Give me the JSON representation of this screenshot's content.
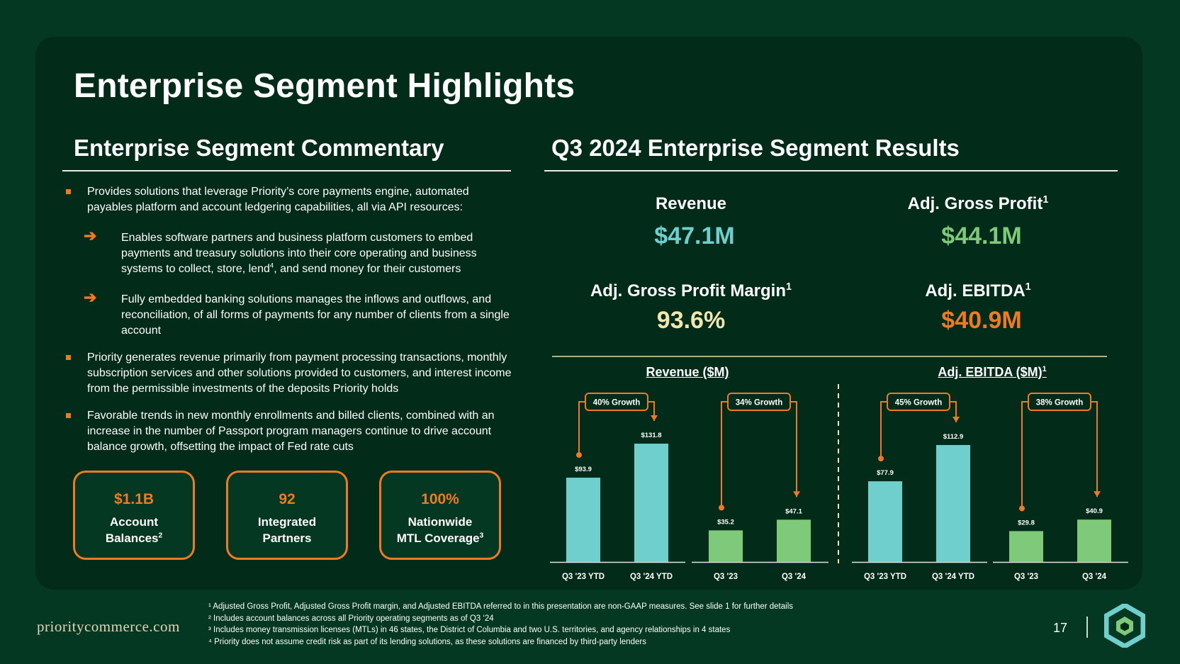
{
  "page": {
    "title": "Enterprise Segment Highlights",
    "page_number": "17",
    "footer_url": "prioritycommerce.com"
  },
  "commentary": {
    "title": "Enterprise Segment Commentary",
    "bullet1": "Provides solutions that leverage Priority’s core payments engine, automated payables platform and account ledgering capabilities, all via API resources:",
    "sub1_part1": "Enables software partners and business platform customers to embed payments and treasury solutions into their core operating and business systems to collect, store, lend",
    "sub1_sup": "4",
    "sub1_part2": ", and send money for their customers",
    "sub2": "Fully embedded banking solutions manages the inflows and outflows, and reconciliation, of all forms of payments for any number of clients from a single account",
    "bullet2": "Priority generates revenue primarily from payment processing transactions, monthly subscription services and other solutions provided to customers, and interest income from the permissible investments of the deposits Priority holds",
    "bullet3": "Favorable trends in new monthly enrollments and billed clients, combined with an increase in the number of Passport program managers continue to drive account balance growth, offsetting the impact of Fed rate cuts",
    "stats": [
      {
        "value": "$1.1B",
        "label1": "Account",
        "label2": "Balances",
        "sup": "2"
      },
      {
        "value": "92",
        "label1": "Integrated",
        "label2": "Partners",
        "sup": ""
      },
      {
        "value": "100%",
        "label1": "Nationwide",
        "label2": "MTL Coverage",
        "sup": "3"
      }
    ]
  },
  "results": {
    "title": "Q3 2024 Enterprise Segment Results",
    "metrics": [
      {
        "label": "Revenue",
        "sup": "",
        "value": "$47.1M",
        "color": "#6fcfcc"
      },
      {
        "label": "Adj. Gross Profit",
        "sup": "1",
        "value": "$44.1M",
        "color": "#7fc97a"
      },
      {
        "label": "Adj. Gross Profit Margin",
        "sup": "1",
        "value": "93.6%",
        "color": "#f2e6b0"
      },
      {
        "label": "Adj. EBITDA",
        "sup": "1",
        "value": "$40.9M",
        "color": "#f07a24"
      }
    ]
  },
  "chart_data": [
    {
      "type": "bar",
      "title": "Revenue ($M)",
      "title_sup": "",
      "ylim": [
        0,
        150
      ],
      "groups": [
        {
          "categories": [
            "Q3 '23 YTD",
            "Q3 '24 YTD"
          ],
          "values": [
            93.9,
            131.8
          ],
          "labels": [
            "$93.9",
            "$131.8"
          ],
          "color": "#6fcfcc",
          "growth": "40% Growth"
        },
        {
          "categories": [
            "Q3 '23",
            "Q3 '24"
          ],
          "values": [
            35.2,
            47.1
          ],
          "labels": [
            "$35.2",
            "$47.1"
          ],
          "color": "#7fc97a",
          "growth": "34% Growth"
        }
      ]
    },
    {
      "type": "bar",
      "title": "Adj. EBITDA ($M)",
      "title_sup": "1",
      "ylim": [
        0,
        130
      ],
      "groups": [
        {
          "categories": [
            "Q3 '23 YTD",
            "Q3 '24 YTD"
          ],
          "values": [
            77.9,
            112.9
          ],
          "labels": [
            "$77.9",
            "$112.9"
          ],
          "color": "#6fcfcc",
          "growth": "45% Growth"
        },
        {
          "categories": [
            "Q3 '23",
            "Q3 '24"
          ],
          "values": [
            29.8,
            40.9
          ],
          "labels": [
            "$29.8",
            "$40.9"
          ],
          "color": "#7fc97a",
          "growth": "38% Growth"
        }
      ]
    }
  ],
  "footnotes": [
    "¹ Adjusted Gross Profit, Adjusted Gross Profit margin, and Adjusted EBITDA referred to in this presentation are non-GAAP measures. See slide 1 for further details",
    "² Includes account balances across all Priority operating segments as of Q3 ‘24",
    "³ Includes money transmission licenses (MTLs) in 46 states, the District of Columbia and two U.S. territories, and agency relationships in 4 states",
    "⁴ Priority does not assume credit risk as part of its lending solutions, as these solutions are financed by third-party lenders"
  ],
  "colors": {
    "background": "#043822",
    "panel": "#022b1a",
    "accent": "#f07a24",
    "teal": "#6fcfcc",
    "green": "#7fc97a"
  }
}
